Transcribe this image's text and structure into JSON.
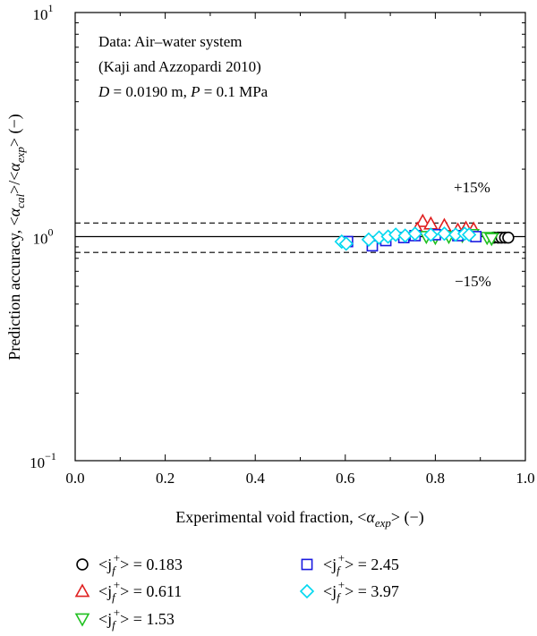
{
  "chart_data": {
    "type": "scatter",
    "xlabel": "Experimental void fraction, <αexp> (−)",
    "ylabel": "Prediction accuracy, <αcal>/<αexp> (−)",
    "xlim": [
      0.0,
      1.0
    ],
    "ylim": [
      0.1,
      10
    ],
    "y_scale": "log",
    "grid": false,
    "legend_position": "below-plot",
    "x_ticks": [
      "0.0",
      "0.2",
      "0.4",
      "0.6",
      "0.8",
      "1.0"
    ],
    "y_ticks": [
      {
        "base": "10",
        "exp": "−1",
        "value": 0.1
      },
      {
        "base": "10",
        "exp": "0",
        "value": 1
      },
      {
        "base": "10",
        "exp": "1",
        "value": 10
      }
    ],
    "annotation_lines": [
      "Data: Air–water system",
      "(Kaji and Azzopardi 2010)",
      "D = 0.0190 m, P = 0.1 MPa"
    ],
    "reference_lines": [
      {
        "value": 1.0,
        "style": "solid"
      },
      {
        "value": 1.15,
        "style": "dashed",
        "label": "+15%"
      },
      {
        "value": 0.85,
        "style": "dashed",
        "label": "−15%"
      }
    ],
    "series": [
      {
        "name": "<jf+> = 0.183",
        "marker": "circle",
        "color": "#000000",
        "points": [
          [
            0.93,
            0.99
          ],
          [
            0.94,
            0.99
          ],
          [
            0.947,
            0.99
          ],
          [
            0.955,
            0.99
          ],
          [
            0.962,
            0.99
          ]
        ]
      },
      {
        "name": "<jf+> = 0.611",
        "marker": "triangle-up",
        "color": "#e02020",
        "points": [
          [
            0.772,
            1.17
          ],
          [
            0.79,
            1.14
          ],
          [
            0.82,
            1.12
          ],
          [
            0.868,
            1.09
          ],
          [
            0.885,
            1.08
          ],
          [
            0.76,
            1.08
          ],
          [
            0.85,
            1.07
          ]
        ]
      },
      {
        "name": "<jf+> = 1.53",
        "marker": "triangle-down",
        "color": "#20c020",
        "points": [
          [
            0.78,
            1.0
          ],
          [
            0.8,
            0.99
          ],
          [
            0.83,
            1.0
          ],
          [
            0.86,
            1.01
          ],
          [
            0.882,
            1.02
          ],
          [
            0.915,
            0.99
          ],
          [
            0.925,
            0.98
          ]
        ]
      },
      {
        "name": "<jf+> = 2.45",
        "marker": "square",
        "color": "#1a1ae0",
        "points": [
          [
            0.605,
            0.95
          ],
          [
            0.66,
            0.91
          ],
          [
            0.69,
            0.96
          ],
          [
            0.73,
            0.99
          ],
          [
            0.755,
            1.01
          ],
          [
            0.8,
            1.02
          ],
          [
            0.85,
            1.01
          ],
          [
            0.89,
            1.0
          ]
        ]
      },
      {
        "name": "<jf+> = 3.97",
        "marker": "diamond",
        "color": "#00d8f0",
        "points": [
          [
            0.592,
            0.95
          ],
          [
            0.602,
            0.93
          ],
          [
            0.652,
            0.97
          ],
          [
            0.675,
            0.99
          ],
          [
            0.695,
            1.0
          ],
          [
            0.712,
            1.02
          ],
          [
            0.733,
            1.01
          ],
          [
            0.755,
            1.03
          ],
          [
            0.79,
            1.02
          ],
          [
            0.82,
            1.03
          ],
          [
            0.845,
            1.02
          ],
          [
            0.865,
            1.03
          ],
          [
            0.875,
            1.02
          ]
        ]
      }
    ]
  },
  "legend": [
    {
      "prefix": "<j",
      "sub": "f",
      "sup": "+",
      "suffix": "> = 0.183"
    },
    {
      "prefix": "<j",
      "sub": "f",
      "sup": "+",
      "suffix": "> = 0.611"
    },
    {
      "prefix": "<j",
      "sub": "f",
      "sup": "+",
      "suffix": "> = 1.53"
    },
    {
      "prefix": "<j",
      "sub": "f",
      "sup": "+",
      "suffix": "> = 2.45"
    },
    {
      "prefix": "<j",
      "sub": "f",
      "sup": "+",
      "suffix": "> = 3.97"
    }
  ]
}
